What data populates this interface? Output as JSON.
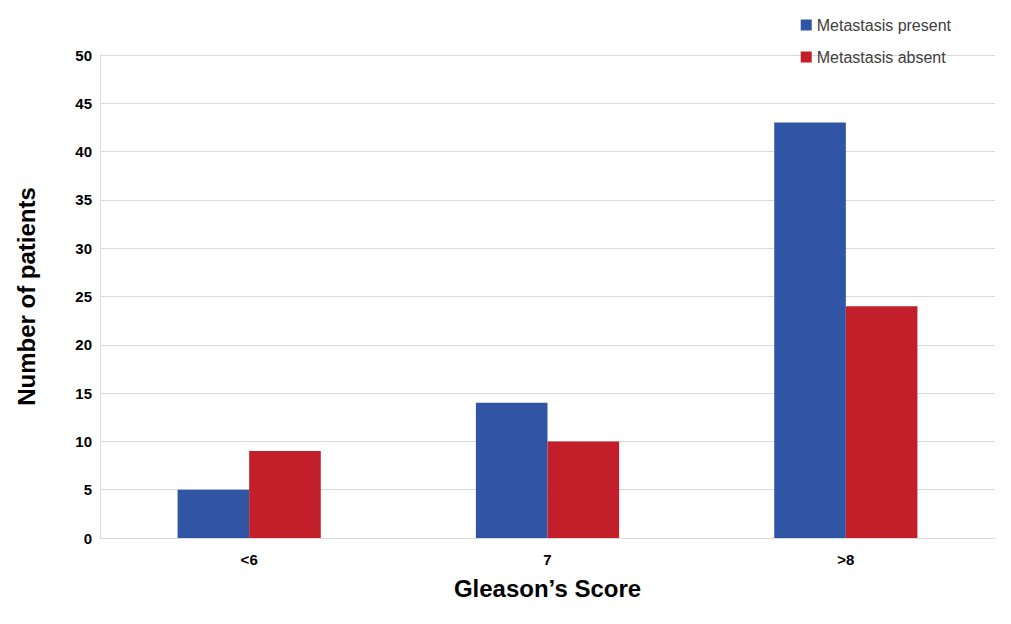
{
  "chart_data": {
    "type": "bar",
    "categories": [
      "<6",
      "7",
      ">8"
    ],
    "series": [
      {
        "name": "Metastasis present",
        "color": "#2f55a4",
        "values": [
          5,
          14,
          43
        ]
      },
      {
        "name": "Metastasis absent",
        "color": "#c21f2b",
        "values": [
          9,
          10,
          24
        ]
      }
    ],
    "x_label": "Gleason’s Score",
    "y_label": "Number of patients",
    "ylim": [
      0,
      50
    ],
    "yticks": [
      0,
      5,
      10,
      15,
      20,
      25,
      30,
      35,
      40,
      45,
      50
    ],
    "grid": true,
    "legend": "top-right"
  }
}
